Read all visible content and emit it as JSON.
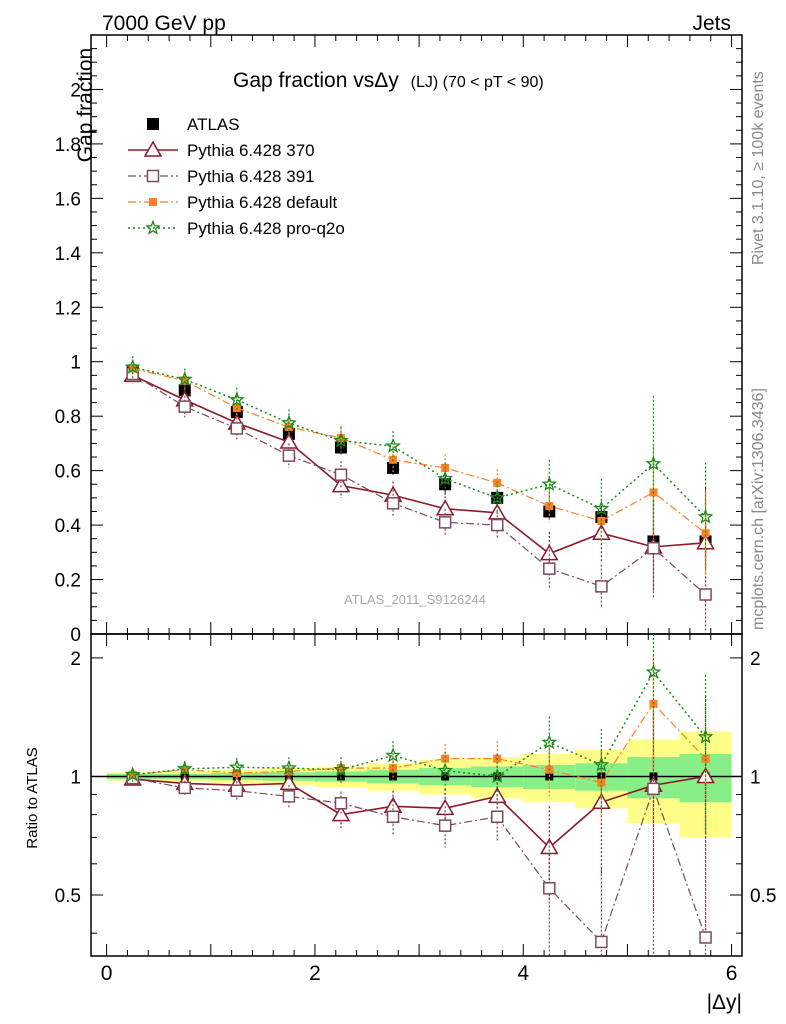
{
  "header": {
    "left": "7000 GeV pp",
    "right": "Jets"
  },
  "side_labels": {
    "top": "Rivet 3.1.10, ≥ 100k events",
    "bottom": "mcplots.cern.ch [arXiv:1306.3436]"
  },
  "main_panel": {
    "title_main": "Gap fraction vsΔy",
    "title_sub": "(LJ)  (70 < pT <  90)",
    "ylabel": "Gap fraction",
    "watermark": "ATLAS_2011_S9126244"
  },
  "ratio_panel": {
    "ylabel": "Ratio to ATLAS",
    "xlabel": "|Δy|"
  },
  "legend": [
    {
      "label": "ATLAS",
      "key": "atlas"
    },
    {
      "label": "Pythia 6.428 370",
      "key": "p370"
    },
    {
      "label": "Pythia 6.428 391",
      "key": "p391"
    },
    {
      "label": "Pythia 6.428 default",
      "key": "pdef"
    },
    {
      "label": "Pythia 6.428 pro-q2o",
      "key": "pq2o"
    }
  ],
  "chart_data": {
    "type": "scatter",
    "title": "Gap fraction vsΔy (LJ) (70 < pT < 90)",
    "xlabel": "|Δy|",
    "ylabel": "Gap fraction",
    "xlim": [
      -0.15,
      6.1
    ],
    "ylim": [
      0,
      2.2
    ],
    "ratio_ylim": [
      0.35,
      2.3
    ],
    "ratio_log": true,
    "x_ticks": [
      "0",
      "2",
      "4",
      "6"
    ],
    "y_ticks": [
      "0",
      "0.2",
      "0.4",
      "0.6",
      "0.8",
      "1",
      "1.2",
      "1.4",
      "1.6",
      "1.8",
      "2"
    ],
    "ratio_ticks": [
      "0.5",
      "1",
      "2"
    ],
    "x": [
      0.25,
      0.75,
      1.25,
      1.75,
      2.25,
      2.75,
      3.25,
      3.75,
      4.25,
      4.75,
      5.25,
      5.75
    ],
    "series": [
      {
        "name": "ATLAS",
        "color": "#000000",
        "values": [
          0.965,
          0.895,
          0.815,
          0.735,
          0.685,
          0.61,
          0.55,
          0.5,
          0.45,
          0.43,
          0.34,
          0.34
        ],
        "errors": [
          0.02,
          0.025,
          0.025,
          0.025,
          0.025,
          0.025,
          0.03,
          0.03,
          0.03,
          0.04,
          0.05,
          0.06
        ],
        "ratio_band_inner": [
          0.015,
          0.015,
          0.02,
          0.025,
          0.03,
          0.04,
          0.05,
          0.06,
          0.07,
          0.08,
          0.12,
          0.14
        ],
        "ratio_band_outer": [
          0.025,
          0.03,
          0.04,
          0.05,
          0.06,
          0.08,
          0.1,
          0.12,
          0.14,
          0.17,
          0.24,
          0.3
        ]
      },
      {
        "name": "Pythia 6.428 370",
        "color": "#8b1a2b",
        "values": [
          0.95,
          0.86,
          0.775,
          0.705,
          0.545,
          0.51,
          0.46,
          0.445,
          0.295,
          0.37,
          0.32,
          0.335
        ],
        "errors": [
          0.03,
          0.04,
          0.04,
          0.045,
          0.045,
          0.05,
          0.06,
          0.06,
          0.08,
          0.11,
          0.17,
          0.2
        ],
        "ratios": [
          0.985,
          0.96,
          0.95,
          0.96,
          0.8,
          0.84,
          0.83,
          0.89,
          0.66,
          0.86,
          0.95,
          1.0
        ],
        "ratio_errors": [
          0.03,
          0.04,
          0.05,
          0.06,
          0.06,
          0.08,
          0.1,
          0.12,
          0.18,
          0.3,
          0.5,
          0.6
        ]
      },
      {
        "name": "Pythia 6.428 391",
        "color": "#7b4a5a",
        "values": [
          0.955,
          0.835,
          0.755,
          0.655,
          0.585,
          0.48,
          0.41,
          0.4,
          0.24,
          0.175,
          0.315,
          0.145
        ],
        "errors": [
          0.03,
          0.04,
          0.04,
          0.045,
          0.05,
          0.05,
          0.05,
          0.05,
          0.07,
          0.08,
          0.18,
          0.14
        ],
        "ratios": [
          0.99,
          0.935,
          0.92,
          0.89,
          0.855,
          0.79,
          0.75,
          0.79,
          0.52,
          0.38,
          0.93,
          0.39
        ],
        "ratio_errors": [
          0.03,
          0.04,
          0.05,
          0.06,
          0.06,
          0.08,
          0.09,
          0.11,
          0.18,
          0.2,
          0.6,
          0.4
        ]
      },
      {
        "name": "Pythia 6.428 default",
        "color": "#ff7f24",
        "values": [
          0.975,
          0.93,
          0.83,
          0.76,
          0.72,
          0.64,
          0.61,
          0.555,
          0.47,
          0.415,
          0.52,
          0.37
        ],
        "errors": [
          0.03,
          0.035,
          0.04,
          0.04,
          0.045,
          0.05,
          0.05,
          0.05,
          0.06,
          0.08,
          0.17,
          0.15
        ],
        "ratios": [
          1.01,
          1.04,
          1.02,
          1.03,
          1.05,
          1.05,
          1.11,
          1.11,
          1.04,
          0.965,
          1.53,
          1.11
        ],
        "ratio_errors": [
          0.03,
          0.04,
          0.05,
          0.06,
          0.07,
          0.08,
          0.1,
          0.12,
          0.15,
          0.2,
          0.5,
          0.4
        ]
      },
      {
        "name": "Pythia 6.428 pro-q2o",
        "color": "#1a8a1a",
        "values": [
          0.98,
          0.935,
          0.86,
          0.775,
          0.71,
          0.69,
          0.57,
          0.5,
          0.55,
          0.46,
          0.625,
          0.43
        ],
        "errors": [
          0.04,
          0.04,
          0.045,
          0.05,
          0.05,
          0.055,
          0.06,
          0.06,
          0.09,
          0.11,
          0.25,
          0.2
        ],
        "ratios": [
          1.01,
          1.045,
          1.055,
          1.05,
          1.04,
          1.13,
          1.035,
          1.0,
          1.22,
          1.07,
          1.84,
          1.26
        ],
        "ratio_errors": [
          0.04,
          0.05,
          0.06,
          0.07,
          0.08,
          0.1,
          0.12,
          0.14,
          0.2,
          0.25,
          0.7,
          0.55
        ]
      }
    ]
  }
}
